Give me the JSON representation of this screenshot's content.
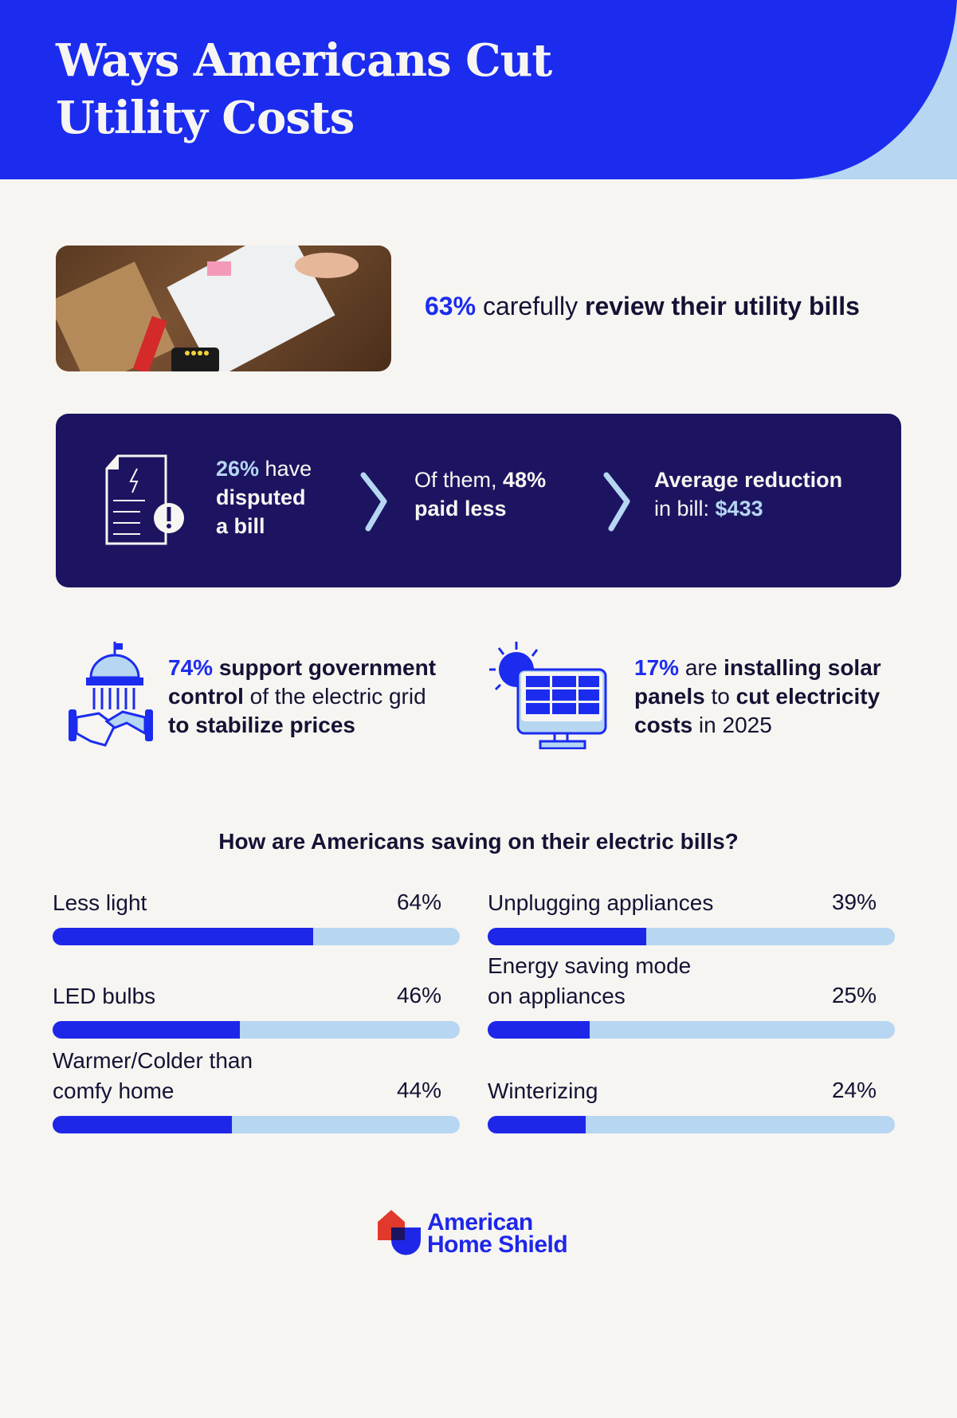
{
  "header": {
    "title_line1": "Ways Americans Cut",
    "title_line2": "Utility Costs"
  },
  "review": {
    "percent": "63%",
    "text_a": " carefully ",
    "text_b": "review their utility bills"
  },
  "dispute": {
    "step1": {
      "percent": "26%",
      "text_a": " have",
      "text_b": "disputed",
      "text_c": "a bill"
    },
    "step2": {
      "text_a": "Of them, ",
      "percent": "48%",
      "text_b": "paid less"
    },
    "step3": {
      "text_a": "Average reduction",
      "text_b": "in bill: ",
      "amount": "$433"
    }
  },
  "government": {
    "percent": "74%",
    "bold1": " support government",
    "bold2": "control",
    "text1": " of the electric grid",
    "bold3": "to stabilize prices"
  },
  "solar": {
    "percent": "17%",
    "text1": " are ",
    "bold1": "installing solar",
    "bold2": "panels",
    "text2": " to ",
    "bold3": "cut electricity",
    "bold4": "costs",
    "text3": " in 2025"
  },
  "chart_data": {
    "type": "bar",
    "title": "How are Americans saving on their electric bills?",
    "categories": [
      "Less light",
      "LED bulbs",
      "Warmer/Colder than comfy home",
      "Unplugging appliances",
      "Energy saving mode on appliances",
      "Winterizing"
    ],
    "values": [
      64,
      46,
      44,
      39,
      25,
      24
    ],
    "value_labels": [
      "64%",
      "46%",
      "44%",
      "39%",
      "25%",
      "24%"
    ],
    "ylim": [
      0,
      100
    ],
    "colors": {
      "fill": "#1e27e8",
      "track": "#b6d6f2"
    }
  },
  "logo": {
    "line1": "American",
    "line2": "Home Shield"
  },
  "colors": {
    "primary": "#1b2cef",
    "dark": "#1c1461",
    "light": "#b6d6f2",
    "background": "#f7f5f1",
    "logo_red": "#e2392d"
  }
}
